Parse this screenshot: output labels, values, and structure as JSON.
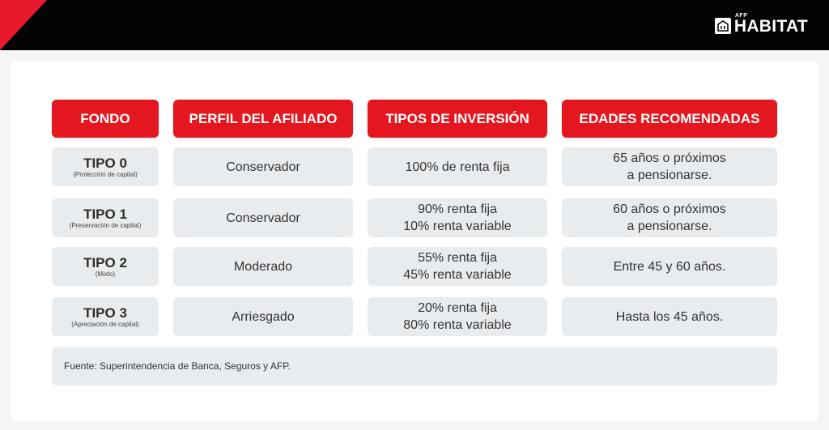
{
  "brand": {
    "afp": "AFP",
    "name": "HABITAT"
  },
  "headers": [
    "FONDO",
    "PERFIL DEL AFILIADO",
    "TIPOS DE INVERSIÓN",
    "EDADES RECOMENDADAS"
  ],
  "rows": [
    {
      "fondo": "TIPO 0",
      "fondo_sub": "(Protección de capital)",
      "perfil": "Conservador",
      "inversion": [
        "100% de renta fija"
      ],
      "edades": [
        "65 años o próximos",
        "a pensionarse."
      ]
    },
    {
      "fondo": "TIPO 1",
      "fondo_sub": "(Preservación de capital)",
      "perfil": "Conservador",
      "inversion": [
        "90% renta fija",
        "10% renta variable"
      ],
      "edades": [
        "60 años o próximos",
        "a pensionarse."
      ]
    },
    {
      "fondo": "TIPO 2",
      "fondo_sub": "(Mixto)",
      "perfil": "Moderado",
      "inversion": [
        "55% renta fija",
        "45% renta variable"
      ],
      "edades": [
        "Entre 45 y 60 años."
      ]
    },
    {
      "fondo": "TIPO 3",
      "fondo_sub": "(Apreciación de capital)",
      "perfil": "Arriesgado",
      "inversion": [
        "20% renta fija",
        "80% renta variable"
      ],
      "edades": [
        "Hasta los 45 años."
      ]
    }
  ],
  "footer": "Fuente: Superintendencia de Banca, Seguros y AFP.",
  "colors": {
    "accent": "#e4161f",
    "topbar": "#040404",
    "cell": "#e9ecef"
  }
}
